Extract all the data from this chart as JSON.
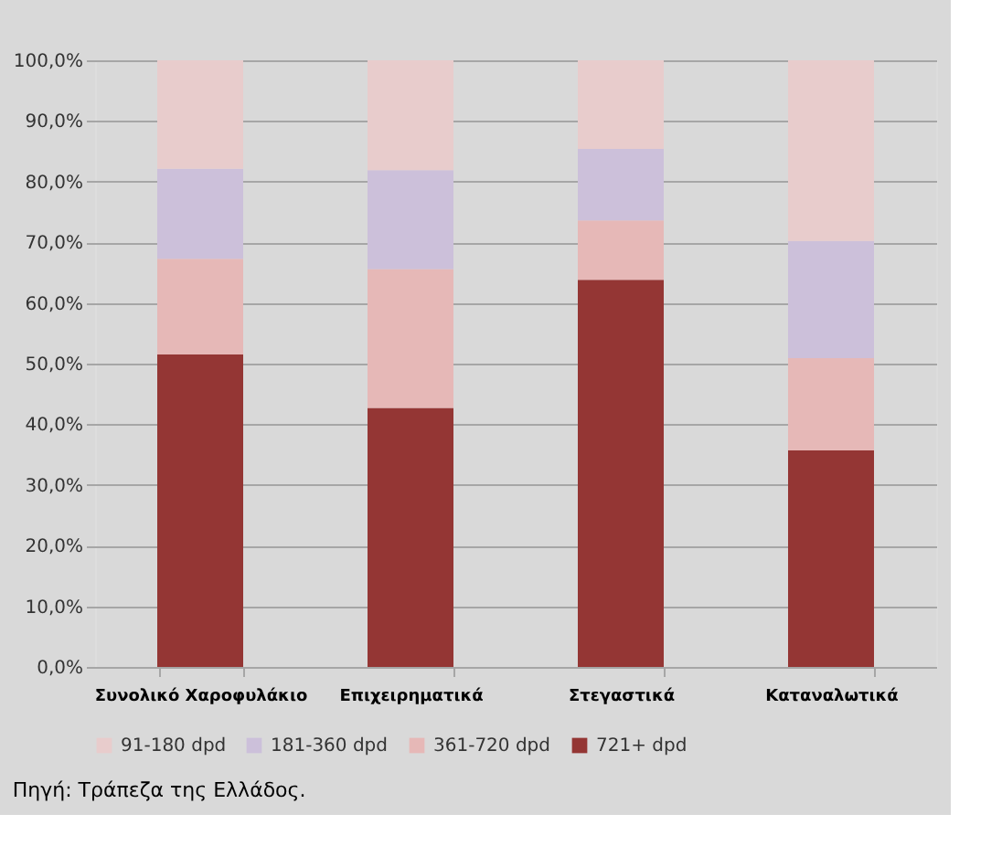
{
  "chart_data": {
    "type": "bar",
    "stacked": true,
    "categories": [
      "Συνολικό Χαροφυλάκιο",
      "Επιχειρηματικά",
      "Στεγαστικά",
      "Καταναλωτικά"
    ],
    "series": [
      {
        "name": "721+ dpd",
        "color": "#943634",
        "values": [
          51.5,
          42.7,
          63.8,
          35.7
        ]
      },
      {
        "name": "361-720 dpd",
        "color": "#e6b8b7",
        "values": [
          15.8,
          22.9,
          9.8,
          15.2
        ]
      },
      {
        "name": "181-360 dpd",
        "color": "#ccc0da",
        "values": [
          14.8,
          16.3,
          11.8,
          19.3
        ]
      },
      {
        "name": "91-180 dpd",
        "color": "#e8cccc",
        "values": [
          17.9,
          18.1,
          14.6,
          29.8
        ]
      }
    ],
    "ylim": [
      0,
      100
    ],
    "yticks": [
      {
        "value": 0,
        "label": "0,0%"
      },
      {
        "value": 10,
        "label": "10,0%"
      },
      {
        "value": 20,
        "label": "20,0%"
      },
      {
        "value": 30,
        "label": "30,0%"
      },
      {
        "value": 40,
        "label": "40,0%"
      },
      {
        "value": 50,
        "label": "50,0%"
      },
      {
        "value": 60,
        "label": "60,0%"
      },
      {
        "value": 70,
        "label": "70,0%"
      },
      {
        "value": 80,
        "label": "80,0%"
      },
      {
        "value": 90,
        "label": "90,0%"
      },
      {
        "value": 100,
        "label": "100,0%"
      }
    ],
    "grid": "y",
    "legend": "bottom",
    "annotations": [
      "Πηγή: Τράπεζα της Ελλάδος."
    ]
  }
}
